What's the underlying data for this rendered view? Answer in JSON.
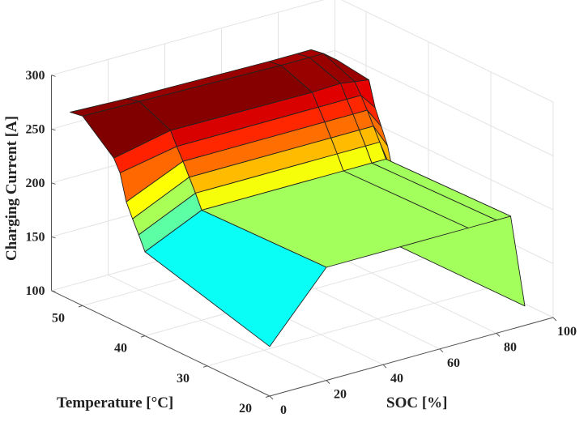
{
  "chart_data": {
    "type": "surface",
    "xlabel": "SOC [%]",
    "ylabel": "Temperature [°C]",
    "zlabel": "Charging Current [A]",
    "xlim": [
      0,
      100
    ],
    "ylim": [
      20,
      55
    ],
    "zlim": [
      100,
      300
    ],
    "xticks": [
      0,
      20,
      40,
      60,
      80,
      100
    ],
    "yticks": [
      20,
      30,
      40,
      50
    ],
    "zticks": [
      100,
      150,
      200,
      250,
      300
    ],
    "grid": true,
    "colormap": "jet",
    "soc": [
      0,
      20,
      70,
      80,
      85,
      90
    ],
    "temperature": [
      20,
      40,
      41,
      42,
      43,
      44,
      45,
      50,
      52
    ],
    "current": [
      [
        146,
        178,
        191,
        203,
        216,
        240,
        251,
        276,
        274
      ],
      [
        205,
        202,
        215,
        227,
        239,
        250,
        262,
        275,
        272
      ],
      [
        205,
        202,
        215,
        227,
        239,
        250,
        261,
        272,
        270
      ],
      [
        205,
        202,
        215,
        227,
        239,
        250,
        262,
        272,
        270
      ],
      [
        205,
        202,
        215,
        227,
        239,
        250,
        260,
        272,
        270
      ],
      [
        118,
        117,
        180,
        205,
        220,
        235,
        258,
        262,
        262
      ]
    ],
    "edge_color": "#222222",
    "grid_color": "#e3e3e3",
    "axis_color": "#555555"
  }
}
